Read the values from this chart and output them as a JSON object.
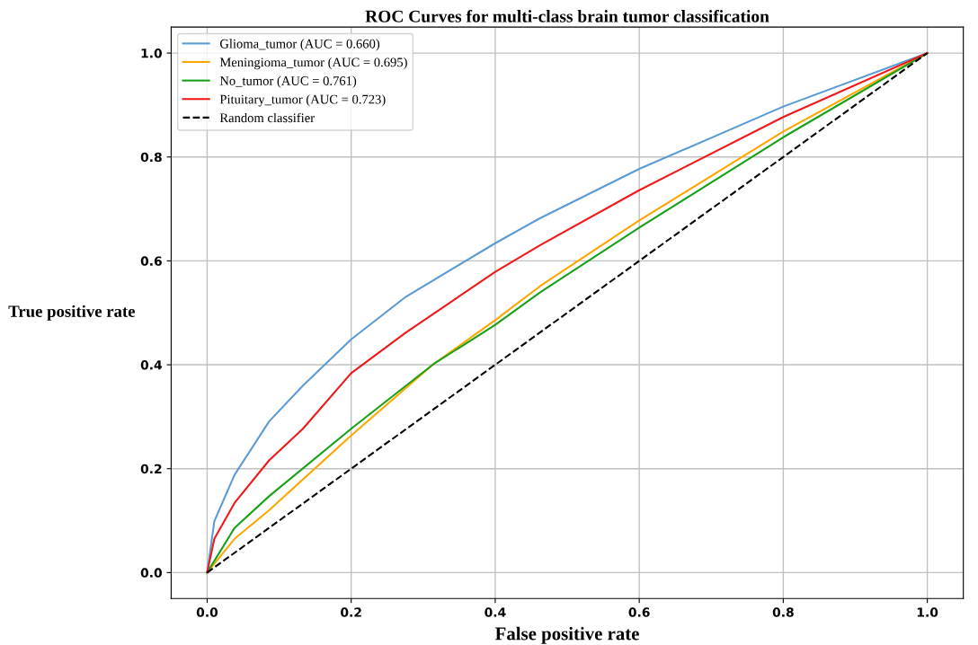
{
  "chart_data": {
    "type": "line",
    "title": "ROC Curves for multi-class brain tumor classification",
    "xlabel": "False positive rate",
    "ylabel": "True positive rate",
    "xlim": [
      -0.05,
      1.05
    ],
    "ylim": [
      -0.05,
      1.05
    ],
    "xticks": [
      {
        "value": 0,
        "label": "0.0"
      },
      0.2,
      0.4,
      0.6,
      0.8,
      {
        "value": 1,
        "label": "1.0"
      }
    ],
    "yticks": [
      {
        "value": 0,
        "label": "0.0"
      },
      0.2,
      0.4,
      0.6,
      0.8,
      {
        "value": 1,
        "label": "1.0"
      }
    ],
    "grid": true,
    "legend": "top left",
    "marker": "none",
    "series": [
      {
        "name": "Glioma_tumor (AUC = 0.660)",
        "color": "#5b9bd5",
        "x": [
          0,
          0.01,
          0.038,
          0.086,
          0.133,
          0.2,
          0.276,
          0.4,
          0.462,
          0.6,
          0.8,
          1.0
        ],
        "values": [
          0,
          0.099,
          0.188,
          0.291,
          0.36,
          0.449,
          0.531,
          0.634,
          0.682,
          0.777,
          0.897,
          1.0
        ]
      },
      {
        "name": "Meningioma_tumor (AUC = 0.695)",
        "color": "#ffa500",
        "x": [
          0,
          0.038,
          0.086,
          0.2,
          0.314,
          0.4,
          0.462,
          0.6,
          0.8,
          1.0
        ],
        "values": [
          0,
          0.065,
          0.12,
          0.264,
          0.401,
          0.486,
          0.551,
          0.678,
          0.849,
          1.0
        ]
      },
      {
        "name": "No_tumor (AUC = 0.761)",
        "color": "#18a018",
        "x": [
          0,
          0.038,
          0.086,
          0.2,
          0.314,
          0.4,
          0.462,
          0.6,
          0.8,
          1.0
        ],
        "values": [
          0,
          0.086,
          0.147,
          0.277,
          0.401,
          0.477,
          0.539,
          0.664,
          0.838,
          1.0
        ]
      },
      {
        "name": "Pituitary_tumor (AUC = 0.723)",
        "color": "#f01818",
        "x": [
          0,
          0.01,
          0.038,
          0.086,
          0.133,
          0.2,
          0.276,
          0.4,
          0.462,
          0.6,
          0.8,
          1.0
        ],
        "values": [
          0,
          0.065,
          0.134,
          0.216,
          0.277,
          0.384,
          0.462,
          0.579,
          0.63,
          0.736,
          0.877,
          1.0
        ]
      },
      {
        "name": "Random classifier",
        "color": "#000000",
        "line_style": "dashed",
        "x": [
          0,
          1
        ],
        "values": [
          0,
          1
        ]
      }
    ]
  }
}
